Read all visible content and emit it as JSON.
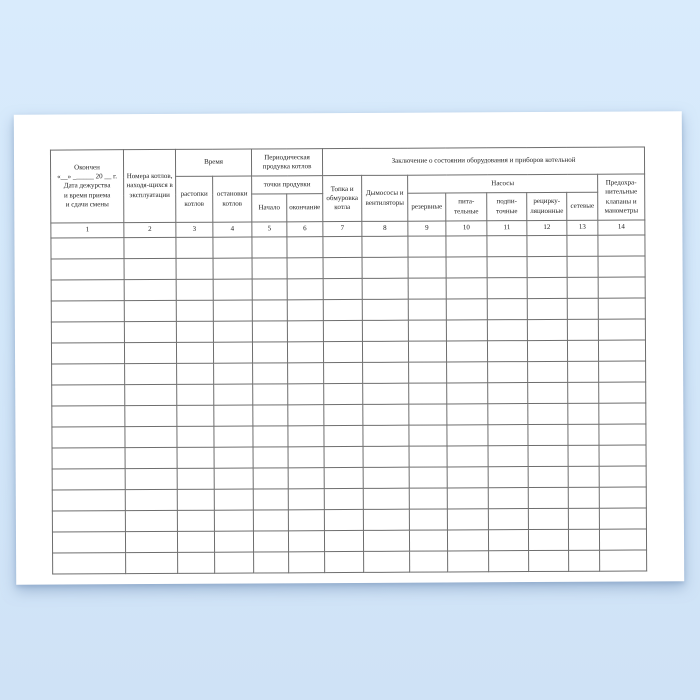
{
  "page": {
    "background_top": "#d9ebfc",
    "background_bottom": "#cfe2f6",
    "paper_color": "#ffffff"
  },
  "table": {
    "header": {
      "col1_duty_date": "Окончен\n«__» ______ 20 __ г.\nДата дежурства\nи время приема\nи сдачи смены",
      "col2_boiler_numbers": "Номера котлов,\nнаходя-щихся в\nэксплуатации",
      "time_group": "Время",
      "time_firing": "растопки\nкотлов",
      "time_shutdown": "остановки\nкотлов",
      "blowdown_group": "Периодическая\nпродувка  котлов",
      "blowdown_points": "точки продувки",
      "blowdown_begin": "Начало",
      "blowdown_end": "окончание",
      "conclusion_group": "Заключение о состоянии оборудования и приборов котельной",
      "furnace": "Топка и\nобмуровка\nкотла",
      "fans": "Дымососы и\nвентиляторы",
      "pumps_group": "Насосы",
      "pump_reserve": "резервные",
      "pump_feed": "пита-\nтельные",
      "pump_makeup": "подпи-\nточные",
      "pump_recirculation": "рецирку-\nляционные",
      "pump_network": "сетевые",
      "safety_valves": "Предохра-\nнительные\nклапаны и\nманометры"
    },
    "column_numbers": [
      "1",
      "2",
      "3",
      "4",
      "5",
      "6",
      "7",
      "8",
      "9",
      "10",
      "11",
      "12",
      "13",
      "14"
    ],
    "body_rows": 16,
    "columns_count": 14
  }
}
